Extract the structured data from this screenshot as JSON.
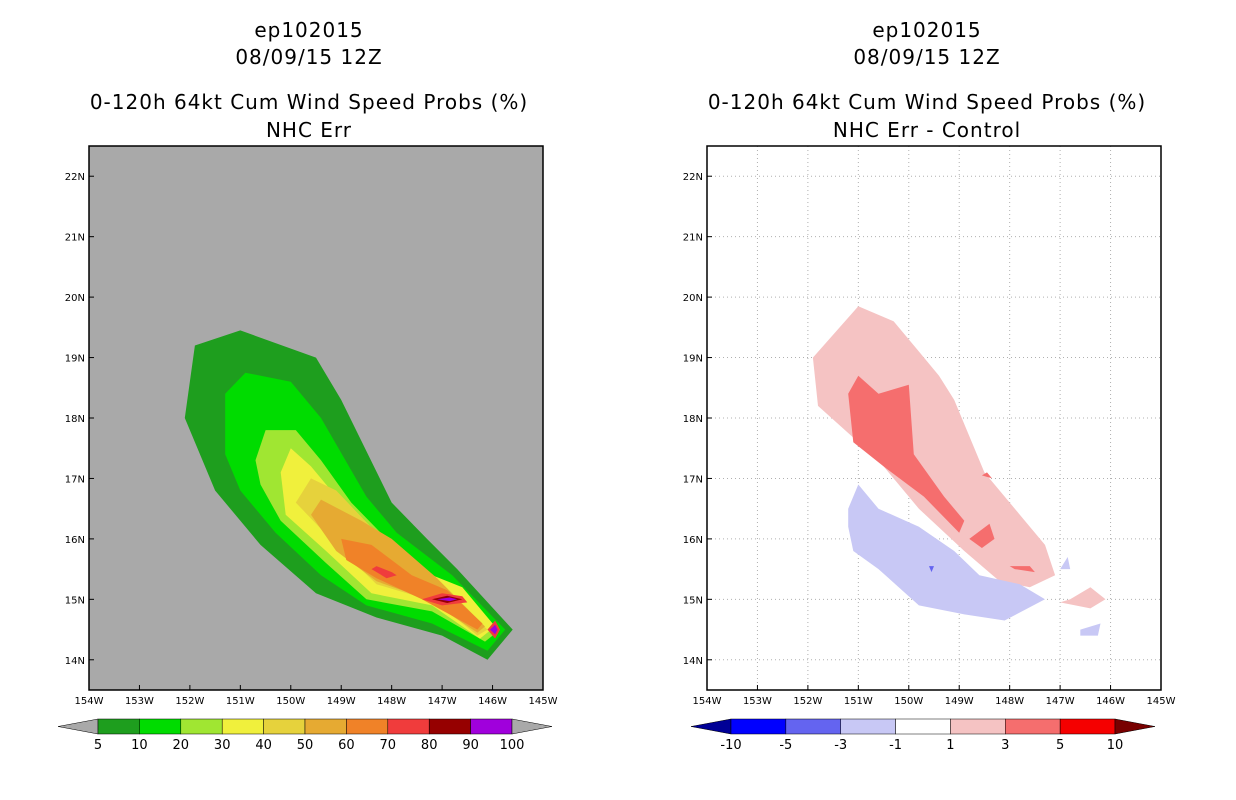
{
  "left_panel": {
    "storm": "ep102015",
    "datetime": "08/09/15 12Z",
    "product": "0-120h 64kt Cum Wind Speed Probs (%)",
    "subtitle": "NHC Err"
  },
  "right_panel": {
    "storm": "ep102015",
    "datetime": "08/09/15 12Z",
    "product": "0-120h 64kt Cum Wind Speed Probs (%)",
    "subtitle": "NHC Err - Control"
  },
  "chart_data": [
    {
      "type": "heatmap",
      "title": "0-120h 64kt Cum Wind Speed Probs (%)",
      "subtitle": "NHC Err",
      "x_ticks": [
        "154W",
        "153W",
        "152W",
        "151W",
        "150W",
        "149W",
        "148W",
        "147W",
        "146W",
        "145W"
      ],
      "y_ticks": [
        "14N",
        "15N",
        "16N",
        "17N",
        "18N",
        "19N",
        "20N",
        "21N",
        "22N"
      ],
      "xlim": [
        -154,
        -145
      ],
      "ylim": [
        13.5,
        22.5
      ],
      "grid": false,
      "background": "#a9a9a9",
      "colorbar": {
        "levels": [
          "5",
          "10",
          "20",
          "30",
          "40",
          "50",
          "60",
          "70",
          "80",
          "90",
          "100"
        ],
        "colors": [
          "#1e9e1e",
          "#00dc00",
          "#a0e632",
          "#f0f03c",
          "#e6d23c",
          "#e6aa32",
          "#f08228",
          "#f03c3c",
          "#960000",
          "#a000dc"
        ],
        "under_color": "#a9a9a9",
        "over_color": "#a9a9a9"
      },
      "contours": [
        {
          "level": 5,
          "color": "#1e9e1e",
          "points": [
            [
              -152.1,
              18.0
            ],
            [
              -151.9,
              19.2
            ],
            [
              -151.0,
              19.45
            ],
            [
              -149.5,
              19.0
            ],
            [
              -149.0,
              18.3
            ],
            [
              -148.0,
              16.6
            ],
            [
              -147.3,
              16.0
            ],
            [
              -146.7,
              15.5
            ],
            [
              -145.6,
              14.5
            ],
            [
              -146.1,
              14.0
            ],
            [
              -147.0,
              14.4
            ],
            [
              -148.3,
              14.7
            ],
            [
              -149.5,
              15.1
            ],
            [
              -150.6,
              15.9
            ],
            [
              -151.5,
              16.8
            ]
          ]
        },
        {
          "level": 10,
          "color": "#00dc00",
          "points": [
            [
              -151.3,
              17.4
            ],
            [
              -151.3,
              18.4
            ],
            [
              -150.9,
              18.75
            ],
            [
              -150.0,
              18.6
            ],
            [
              -149.4,
              18.0
            ],
            [
              -148.5,
              16.7
            ],
            [
              -147.9,
              16.1
            ],
            [
              -146.8,
              15.4
            ],
            [
              -145.75,
              14.5
            ],
            [
              -146.1,
              14.15
            ],
            [
              -147.2,
              14.6
            ],
            [
              -148.5,
              14.9
            ],
            [
              -149.4,
              15.4
            ],
            [
              -150.3,
              16.1
            ],
            [
              -151.0,
              16.8
            ]
          ]
        },
        {
          "level": 20,
          "color": "#a0e632",
          "points": [
            [
              -150.7,
              17.3
            ],
            [
              -150.5,
              17.8
            ],
            [
              -149.9,
              17.8
            ],
            [
              -149.4,
              17.3
            ],
            [
              -148.8,
              16.6
            ],
            [
              -148.1,
              16.0
            ],
            [
              -147.1,
              15.35
            ],
            [
              -145.85,
              14.5
            ],
            [
              -146.15,
              14.3
            ],
            [
              -147.2,
              14.8
            ],
            [
              -148.5,
              15.0
            ],
            [
              -149.3,
              15.6
            ],
            [
              -150.2,
              16.3
            ],
            [
              -150.6,
              16.9
            ]
          ]
        },
        {
          "level": 30,
          "color": "#f0f03c",
          "points": [
            [
              -150.2,
              17.1
            ],
            [
              -150.0,
              17.5
            ],
            [
              -149.6,
              17.2
            ],
            [
              -149.1,
              16.7
            ],
            [
              -148.4,
              16.1
            ],
            [
              -147.5,
              15.5
            ],
            [
              -146.6,
              15.2
            ],
            [
              -145.95,
              14.55
            ],
            [
              -146.25,
              14.35
            ],
            [
              -147.2,
              14.9
            ],
            [
              -148.4,
              15.1
            ],
            [
              -149.3,
              15.8
            ],
            [
              -150.1,
              16.4
            ]
          ]
        },
        {
          "level": 40,
          "color": "#e6d23c",
          "points": [
            [
              -149.9,
              16.6
            ],
            [
              -149.6,
              17.0
            ],
            [
              -149.1,
              16.8
            ],
            [
              -148.3,
              16.1
            ],
            [
              -147.1,
              15.3
            ],
            [
              -146.1,
              14.5
            ],
            [
              -146.3,
              14.4
            ],
            [
              -147.1,
              14.95
            ],
            [
              -148.3,
              15.25
            ],
            [
              -149.1,
              15.9
            ]
          ]
        },
        {
          "level": 50,
          "color": "#e6aa32",
          "points": [
            [
              -149.6,
              16.4
            ],
            [
              -149.4,
              16.65
            ],
            [
              -148.6,
              16.3
            ],
            [
              -148.0,
              16.0
            ],
            [
              -147.1,
              15.35
            ],
            [
              -146.15,
              14.55
            ],
            [
              -146.3,
              14.45
            ],
            [
              -147.3,
              15.0
            ],
            [
              -148.3,
              15.3
            ],
            [
              -149.1,
              15.8
            ]
          ]
        },
        {
          "level": 60,
          "color": "#f08228",
          "points": [
            [
              -149.0,
              16.0
            ],
            [
              -148.4,
              15.9
            ],
            [
              -147.6,
              15.4
            ],
            [
              -146.9,
              15.15
            ],
            [
              -146.2,
              14.6
            ],
            [
              -146.3,
              14.5
            ],
            [
              -147.4,
              15.0
            ],
            [
              -148.3,
              15.35
            ],
            [
              -148.9,
              15.65
            ]
          ]
        },
        {
          "level": 70,
          "color": "#f03c3c",
          "points": [
            [
              -148.3,
              15.55
            ],
            [
              -148.0,
              15.45
            ],
            [
              -147.9,
              15.4
            ],
            [
              -148.1,
              15.35
            ],
            [
              -148.4,
              15.5
            ]
          ]
        },
        {
          "level": 70,
          "color": "#f03c3c",
          "points": [
            [
              -147.4,
              15.0
            ],
            [
              -147.0,
              15.1
            ],
            [
              -146.6,
              15.05
            ],
            [
              -146.5,
              14.95
            ],
            [
              -147.0,
              14.9
            ]
          ]
        },
        {
          "level": 70,
          "color": "#f03c3c",
          "points": [
            [
              -146.1,
              14.5
            ],
            [
              -145.95,
              14.65
            ],
            [
              -145.85,
              14.5
            ],
            [
              -145.95,
              14.35
            ]
          ]
        },
        {
          "level": 80,
          "color": "#960000",
          "points": [
            [
              -147.2,
              15.0
            ],
            [
              -146.9,
              15.06
            ],
            [
              -146.6,
              15.0
            ],
            [
              -146.9,
              14.94
            ]
          ]
        },
        {
          "level": 90,
          "color": "#a000dc",
          "points": [
            [
              -147.1,
              15.0
            ],
            [
              -146.85,
              15.03
            ],
            [
              -146.7,
              15.0
            ],
            [
              -146.85,
              14.97
            ]
          ]
        },
        {
          "level": 90,
          "color": "#a000dc",
          "points": [
            [
              -146.05,
              14.5
            ],
            [
              -145.95,
              14.58
            ],
            [
              -145.9,
              14.5
            ],
            [
              -145.95,
              14.42
            ]
          ]
        }
      ]
    },
    {
      "type": "heatmap",
      "title": "0-120h 64kt Cum Wind Speed Probs (%)",
      "subtitle": "NHC Err - Control",
      "x_ticks": [
        "154W",
        "153W",
        "152W",
        "151W",
        "150W",
        "149W",
        "148W",
        "147W",
        "146W",
        "145W"
      ],
      "y_ticks": [
        "14N",
        "15N",
        "16N",
        "17N",
        "18N",
        "19N",
        "20N",
        "21N",
        "22N"
      ],
      "xlim": [
        -154,
        -145
      ],
      "ylim": [
        13.5,
        22.5
      ],
      "grid": true,
      "background": "#ffffff",
      "colorbar": {
        "levels": [
          "-10",
          "-5",
          "-3",
          "-1",
          "1",
          "3",
          "5",
          "10"
        ],
        "colors": [
          "#0000ff",
          "#6464f0",
          "#c8c8f5",
          "#ffffff",
          "#f5c3c3",
          "#f56e6e",
          "#f50000"
        ],
        "under_color": "#000096",
        "over_color": "#780000"
      },
      "contours": [
        {
          "level": 1,
          "color": "#f5c3c3",
          "points": [
            [
              -151.9,
              19.0
            ],
            [
              -151.0,
              19.85
            ],
            [
              -150.3,
              19.6
            ],
            [
              -149.8,
              19.1
            ],
            [
              -149.4,
              18.7
            ],
            [
              -149.1,
              18.3
            ],
            [
              -148.5,
              17.1
            ],
            [
              -147.8,
              16.4
            ],
            [
              -147.3,
              15.9
            ],
            [
              -147.1,
              15.4
            ],
            [
              -147.6,
              15.2
            ],
            [
              -148.2,
              15.3
            ],
            [
              -148.9,
              15.8
            ],
            [
              -149.8,
              16.5
            ],
            [
              -150.6,
              17.3
            ],
            [
              -151.8,
              18.2
            ]
          ]
        },
        {
          "level": 1,
          "color": "#f5c3c3",
          "points": [
            [
              -146.8,
              15.0
            ],
            [
              -146.4,
              15.2
            ],
            [
              -146.1,
              15.0
            ],
            [
              -146.4,
              14.85
            ],
            [
              -147.0,
              14.95
            ]
          ]
        },
        {
          "level": 3,
          "color": "#f56e6e",
          "points": [
            [
              -151.2,
              18.4
            ],
            [
              -151.0,
              18.7
            ],
            [
              -150.6,
              18.4
            ],
            [
              -150.0,
              18.55
            ],
            [
              -149.9,
              17.4
            ],
            [
              -149.3,
              16.7
            ],
            [
              -148.9,
              16.3
            ],
            [
              -149.0,
              16.1
            ],
            [
              -149.7,
              16.7
            ],
            [
              -150.5,
              17.2
            ],
            [
              -151.1,
              17.6
            ]
          ]
        },
        {
          "level": 3,
          "color": "#f56e6e",
          "points": [
            [
              -148.8,
              16.0
            ],
            [
              -148.4,
              16.25
            ],
            [
              -148.3,
              16.0
            ],
            [
              -148.55,
              15.85
            ]
          ]
        },
        {
          "level": 3,
          "color": "#f56e6e",
          "points": [
            [
              -148.0,
              15.55
            ],
            [
              -147.6,
              15.55
            ],
            [
              -147.5,
              15.45
            ],
            [
              -147.9,
              15.5
            ]
          ]
        },
        {
          "level": 3,
          "color": "#f56e6e",
          "points": [
            [
              -148.55,
              17.05
            ],
            [
              -148.45,
              17.1
            ],
            [
              -148.35,
              17.0
            ]
          ]
        },
        {
          "level": -1,
          "color": "#c8c8f5",
          "points": [
            [
              -151.2,
              16.5
            ],
            [
              -151.0,
              16.9
            ],
            [
              -150.6,
              16.5
            ],
            [
              -149.8,
              16.2
            ],
            [
              -149.1,
              15.8
            ],
            [
              -148.6,
              15.4
            ],
            [
              -147.8,
              15.25
            ],
            [
              -147.3,
              15.0
            ],
            [
              -148.1,
              14.65
            ],
            [
              -148.9,
              14.75
            ],
            [
              -149.8,
              14.9
            ],
            [
              -150.2,
              15.2
            ],
            [
              -150.6,
              15.5
            ],
            [
              -151.1,
              15.8
            ],
            [
              -151.2,
              16.2
            ]
          ]
        },
        {
          "level": -1,
          "color": "#c8c8f5",
          "points": [
            [
              -146.6,
              14.5
            ],
            [
              -146.2,
              14.6
            ],
            [
              -146.25,
              14.4
            ],
            [
              -146.6,
              14.4
            ]
          ]
        },
        {
          "level": -1,
          "color": "#c8c8f5",
          "points": [
            [
              -147.0,
              15.5
            ],
            [
              -146.85,
              15.7
            ],
            [
              -146.8,
              15.5
            ]
          ]
        },
        {
          "level": -3,
          "color": "#6464f0",
          "points": [
            [
              -149.6,
              15.55
            ],
            [
              -149.5,
              15.55
            ],
            [
              -149.55,
              15.45
            ]
          ]
        }
      ]
    }
  ]
}
